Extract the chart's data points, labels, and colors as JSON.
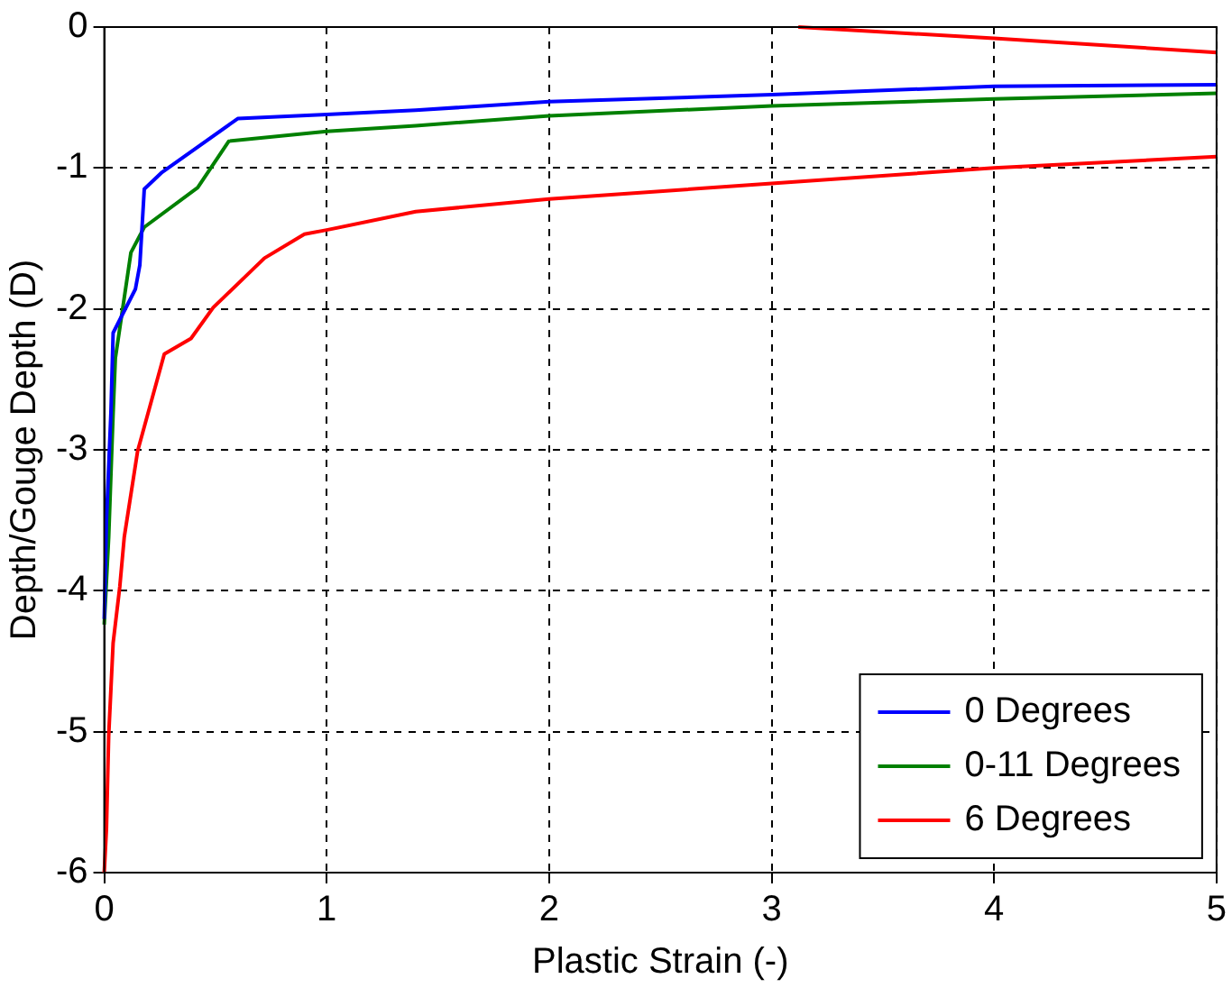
{
  "chart_data": {
    "type": "line",
    "xlabel": "Plastic Strain (-)",
    "ylabel": "Depth/Gouge Depth (D)",
    "xlim": [
      0,
      5
    ],
    "xticks": [
      0,
      1,
      2,
      3,
      4,
      5
    ],
    "ylim": [
      -6,
      0
    ],
    "yticks": [
      -6,
      -5,
      -4,
      -3,
      -2,
      -1,
      0
    ],
    "grid": true,
    "legend": "bottom right",
    "marker": "none",
    "line_style": "solid",
    "series": [
      {
        "name": "0 Degrees",
        "color": "#0000ff",
        "x": [
          0,
          0.01,
          0.03,
          0.04,
          0.14,
          0.16,
          0.18,
          0.26,
          0.6,
          1,
          1.4,
          2,
          3,
          4,
          5
        ],
        "values": [
          -4.2,
          -3.5,
          -2.74,
          -2.17,
          -1.86,
          -1.69,
          -1.15,
          -1.03,
          -0.65,
          -0.62,
          -0.59,
          -0.53,
          -0.48,
          -0.42,
          -0.41
        ]
      },
      {
        "name": "0-11 Degrees",
        "color": "#008000",
        "x": [
          0,
          0.02,
          0.04,
          0.05,
          0.12,
          0.18,
          0.42,
          0.56,
          1,
          1.4,
          2,
          3,
          4,
          5
        ],
        "values": [
          -4.24,
          -3.62,
          -2.74,
          -2.35,
          -1.6,
          -1.42,
          -1.14,
          -0.81,
          -0.74,
          -0.7,
          -0.63,
          -0.56,
          -0.51,
          -0.47
        ]
      },
      {
        "name": "6 Degrees",
        "color": "#ff0000",
        "x": [
          0,
          0.01,
          0.02,
          0.04,
          0.07,
          0.09,
          0.15,
          0.27,
          0.39,
          0.49,
          0.72,
          0.9,
          1,
          1.4,
          2,
          3,
          4,
          5
        ],
        "values": [
          -6,
          -5.69,
          -5.03,
          -4.37,
          -3.97,
          -3.62,
          -3.01,
          -2.32,
          -2.21,
          -1.99,
          -1.64,
          -1.47,
          -1.44,
          -1.31,
          -1.22,
          -1.11,
          -1,
          -0.92
        ]
      },
      {
        "color": "#ff0000",
        "x": [
          3.12,
          4,
          5
        ],
        "values": [
          0,
          -0.08,
          -0.18
        ]
      }
    ]
  }
}
